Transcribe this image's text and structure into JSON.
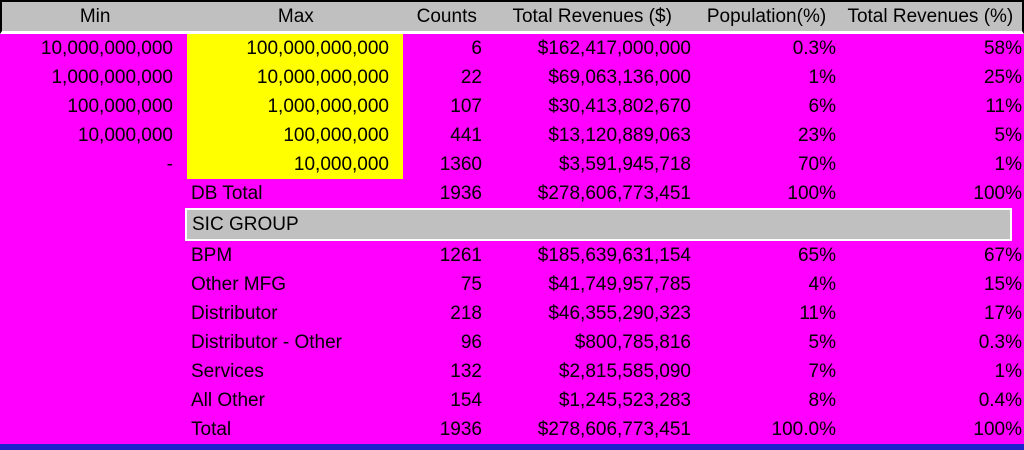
{
  "table": {
    "columns": {
      "min": "Min",
      "max": "Max",
      "counts": "Counts",
      "total_revenues": "Total Revenues ($)",
      "population_pct": "Population(%)",
      "total_revenues_pct": "Total Revenues (%)"
    },
    "bands": [
      {
        "min": "10,000,000,000",
        "max": "100,000,000,000",
        "counts": "6",
        "revenue": "$162,417,000,000",
        "population_pct": "0.3%",
        "revenue_pct": "58%"
      },
      {
        "min": "1,000,000,000",
        "max": "10,000,000,000",
        "counts": "22",
        "revenue": "$69,063,136,000",
        "population_pct": "1%",
        "revenue_pct": "25%"
      },
      {
        "min": "100,000,000",
        "max": "1,000,000,000",
        "counts": "107",
        "revenue": "$30,413,802,670",
        "population_pct": "6%",
        "revenue_pct": "11%"
      },
      {
        "min": "10,000,000",
        "max": "100,000,000",
        "counts": "441",
        "revenue": "$13,120,889,063",
        "population_pct": "23%",
        "revenue_pct": "5%"
      },
      {
        "min": "-",
        "max": "10,000,000",
        "counts": "1360",
        "revenue": "$3,591,945,718",
        "population_pct": "70%",
        "revenue_pct": "1%"
      }
    ],
    "db_total": {
      "label": "DB Total",
      "counts": "1936",
      "revenue": "$278,606,773,451",
      "population_pct": "100%",
      "revenue_pct": "100%"
    },
    "sic_group": {
      "title": "SIC GROUP",
      "rows": [
        {
          "label": "BPM",
          "counts": "1261",
          "revenue": "$185,639,631,154",
          "population_pct": "65%",
          "revenue_pct": "67%"
        },
        {
          "label": "Other MFG",
          "counts": "75",
          "revenue": "$41,749,957,785",
          "population_pct": "4%",
          "revenue_pct": "15%"
        },
        {
          "label": "Distributor",
          "counts": "218",
          "revenue": "$46,355,290,323",
          "population_pct": "11%",
          "revenue_pct": "17%"
        },
        {
          "label": "Distributor - Other",
          "counts": "96",
          "revenue": "$800,785,816",
          "population_pct": "5%",
          "revenue_pct": "0.3%"
        },
        {
          "label": "Services",
          "counts": "132",
          "revenue": "$2,815,585,090",
          "population_pct": "7%",
          "revenue_pct": "1%"
        },
        {
          "label": "All Other",
          "counts": "154",
          "revenue": "$1,245,523,283",
          "population_pct": "8%",
          "revenue_pct": "0.4%"
        }
      ],
      "total": {
        "label": "Total",
        "counts": "1936",
        "revenue": "$278,606,773,451",
        "population_pct": "100.0%",
        "revenue_pct": "100%"
      }
    },
    "colors": {
      "background": "#FF00FF",
      "max_band_highlight": "#FFFF00",
      "header_fill": "#C0C0C0",
      "bottom_bar": "#2222CC",
      "text": "#000000"
    }
  }
}
